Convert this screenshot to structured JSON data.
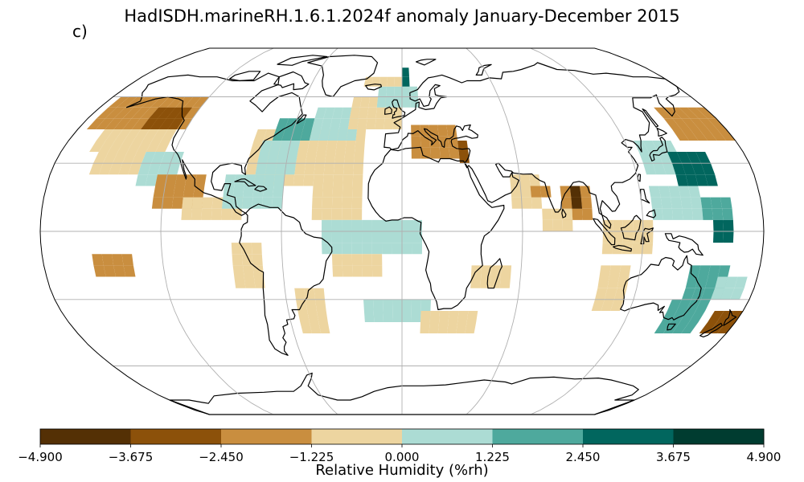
{
  "title": "HadISDH.marineRH.1.6.1.2024f anomaly January-December 2015",
  "panel_label": "c)",
  "colorbar": {
    "label": "Relative Humidity (%rh)",
    "ticks": [
      "−4.900",
      "−3.675",
      "−2.450",
      "−1.225",
      "0.000",
      "1.225",
      "2.450",
      "3.675",
      "4.900"
    ],
    "tick_values": [
      -4.9,
      -3.675,
      -2.45,
      -1.225,
      0.0,
      1.225,
      2.45,
      3.675,
      4.9
    ],
    "colors": [
      "#543005",
      "#8c510a",
      "#c98e3f",
      "#edd5a0",
      "#acdcd4",
      "#4ea99d",
      "#01665e",
      "#003c30"
    ]
  },
  "chart_data": {
    "type": "heatmap",
    "projection": "robinson",
    "grid": true,
    "gridlines_lon_step_deg": 60,
    "gridlines_lat_step_deg": 30,
    "cell_size_deg": 5,
    "value_range": [
      -4.9,
      4.9
    ],
    "regions": [
      {
        "lon": [
          -175,
          -120
        ],
        "lat": [
          45,
          60
        ],
        "value": -2.0
      },
      {
        "lon": [
          -165,
          -125
        ],
        "lat": [
          35,
          45
        ],
        "value": -1.0
      },
      {
        "lon": [
          -145,
          -125
        ],
        "lat": [
          45,
          55
        ],
        "value": -3.0
      },
      {
        "lon": [
          -160,
          -135
        ],
        "lat": [
          25,
          35
        ],
        "value": -0.5
      },
      {
        "lon": [
          -135,
          -115
        ],
        "lat": [
          20,
          35
        ],
        "value": 0.6
      },
      {
        "lon": [
          -125,
          -100
        ],
        "lat": [
          10,
          25
        ],
        "value": -1.5
      },
      {
        "lon": [
          -110,
          -80
        ],
        "lat": [
          5,
          15
        ],
        "value": -0.8
      },
      {
        "lon": [
          -80,
          -20
        ],
        "lat": [
          20,
          45
        ],
        "value": -0.6
      },
      {
        "lon": [
          -75,
          -55
        ],
        "lat": [
          25,
          40
        ],
        "value": 1.0
      },
      {
        "lon": [
          -70,
          -50
        ],
        "lat": [
          40,
          50
        ],
        "value": 1.8
      },
      {
        "lon": [
          -50,
          -25
        ],
        "lat": [
          40,
          55
        ],
        "value": 0.8
      },
      {
        "lon": [
          -90,
          -60
        ],
        "lat": [
          10,
          25
        ],
        "value": 1.0
      },
      {
        "lon": [
          -45,
          -20
        ],
        "lat": [
          5,
          20
        ],
        "value": -1.2
      },
      {
        "lon": [
          -30,
          0
        ],
        "lat": [
          45,
          60
        ],
        "value": -1.0
      },
      {
        "lon": [
          -15,
          10
        ],
        "lat": [
          55,
          65
        ],
        "value": 0.9
      },
      {
        "lon": [
          0,
          5
        ],
        "lat": [
          65,
          75
        ],
        "value": 3.0
      },
      {
        "lon": [
          -25,
          0
        ],
        "lat": [
          65,
          70
        ],
        "value": -0.8
      },
      {
        "lon": [
          5,
          30
        ],
        "lat": [
          32,
          44
        ],
        "value": -1.3
      },
      {
        "lon": [
          30,
          35
        ],
        "lat": [
          30,
          40
        ],
        "value": -2.8
      },
      {
        "lon": [
          -40,
          10
        ],
        "lat": [
          -10,
          5
        ],
        "value": 0.7
      },
      {
        "lon": [
          -35,
          -10
        ],
        "lat": [
          -20,
          -10
        ],
        "value": -0.7
      },
      {
        "lon": [
          -20,
          15
        ],
        "lat": [
          -40,
          -30
        ],
        "value": 0.6
      },
      {
        "lon": [
          10,
          40
        ],
        "lat": [
          -45,
          -35
        ],
        "value": -0.7
      },
      {
        "lon": [
          35,
          55
        ],
        "lat": [
          -25,
          -15
        ],
        "value": -0.8
      },
      {
        "lon": [
          -55,
          -40
        ],
        "lat": [
          -45,
          -25
        ],
        "value": -1.2
      },
      {
        "lon": [
          -85,
          -70
        ],
        "lat": [
          -25,
          -5
        ],
        "value": -1.0
      },
      {
        "lon": [
          -155,
          -135
        ],
        "lat": [
          -20,
          -10
        ],
        "value": -1.5
      },
      {
        "lon": [
          55,
          70
        ],
        "lat": [
          10,
          25
        ],
        "value": -1.0
      },
      {
        "lon": [
          65,
          75
        ],
        "lat": [
          15,
          20
        ],
        "value": -1.5
      },
      {
        "lon": [
          80,
          95
        ],
        "lat": [
          5,
          20
        ],
        "value": -2.0
      },
      {
        "lon": [
          85,
          90
        ],
        "lat": [
          10,
          20
        ],
        "value": -4.5
      },
      {
        "lon": [
          70,
          85
        ],
        "lat": [
          0,
          10
        ],
        "value": -1.0
      },
      {
        "lon": [
          125,
          145
        ],
        "lat": [
          25,
          40
        ],
        "value": 1.0
      },
      {
        "lon": [
          140,
          160
        ],
        "lat": [
          20,
          35
        ],
        "value": 2.5
      },
      {
        "lon": [
          150,
          180
        ],
        "lat": [
          40,
          55
        ],
        "value": -2.0
      },
      {
        "lon": [
          125,
          150
        ],
        "lat": [
          5,
          20
        ],
        "value": 0.8
      },
      {
        "lon": [
          150,
          165
        ],
        "lat": [
          5,
          15
        ],
        "value": 1.8
      },
      {
        "lon": [
          155,
          165
        ],
        "lat": [
          -5,
          5
        ],
        "value": 2.5
      },
      {
        "lon": [
          100,
          125
        ],
        "lat": [
          -10,
          5
        ],
        "value": -1.0
      },
      {
        "lon": [
          100,
          115
        ],
        "lat": [
          -35,
          -15
        ],
        "value": -0.7
      },
      {
        "lon": [
          145,
          165
        ],
        "lat": [
          -30,
          -15
        ],
        "value": 1.5
      },
      {
        "lon": [
          140,
          160
        ],
        "lat": [
          -45,
          -30
        ],
        "value": 2.0
      },
      {
        "lon": [
          165,
          180
        ],
        "lat": [
          -45,
          -35
        ],
        "value": -3.0
      },
      {
        "lon": [
          160,
          175
        ],
        "lat": [
          -30,
          -20
        ],
        "value": 1.0
      }
    ]
  }
}
